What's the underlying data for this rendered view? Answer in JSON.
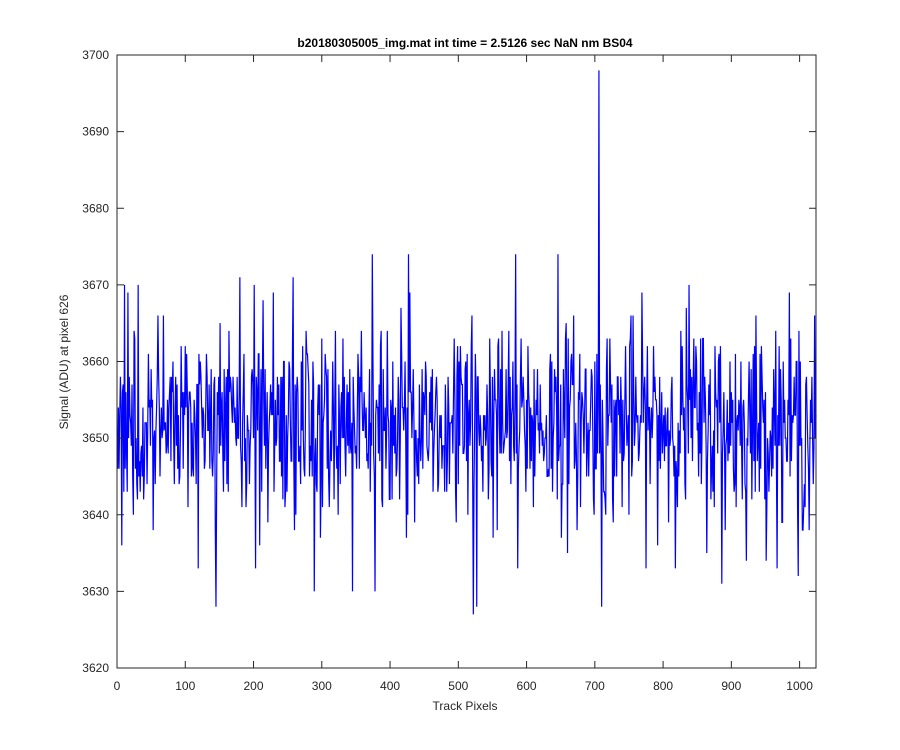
{
  "chart_data": {
    "type": "line",
    "title": "b20180305005_img.mat int time = 2.5126 sec  NaN nm BS04",
    "xlabel": "Track Pixels",
    "ylabel": "Signal (ADU) at pixel 626",
    "xlim": [
      0,
      1024
    ],
    "ylim": [
      3620,
      3700
    ],
    "xticks": [
      0,
      100,
      200,
      300,
      400,
      500,
      600,
      700,
      800,
      900,
      1000
    ],
    "yticks": [
      3620,
      3630,
      3640,
      3650,
      3660,
      3670,
      3680,
      3690,
      3700
    ],
    "grid": false,
    "legend": "none",
    "series": [
      {
        "color": "#0000ff",
        "x_start": 1,
        "x_step": 1,
        "seed": 626,
        "mean": 3652,
        "spread": 6.5,
        "point_count": 1024,
        "key_points": [
          {
            "x": 7,
            "y": 3636
          },
          {
            "x": 11,
            "y": 3670
          },
          {
            "x": 31,
            "y": 3670
          },
          {
            "x": 119,
            "y": 3633
          },
          {
            "x": 145,
            "y": 3628
          },
          {
            "x": 151,
            "y": 3665
          },
          {
            "x": 180,
            "y": 3671
          },
          {
            "x": 201,
            "y": 3670
          },
          {
            "x": 258,
            "y": 3671
          },
          {
            "x": 289,
            "y": 3630
          },
          {
            "x": 345,
            "y": 3630
          },
          {
            "x": 374,
            "y": 3674
          },
          {
            "x": 378,
            "y": 3630
          },
          {
            "x": 427,
            "y": 3674
          },
          {
            "x": 522,
            "y": 3627
          },
          {
            "x": 527,
            "y": 3628
          },
          {
            "x": 584,
            "y": 3674
          },
          {
            "x": 587,
            "y": 3633
          },
          {
            "x": 646,
            "y": 3674
          },
          {
            "x": 706,
            "y": 3698
          },
          {
            "x": 710,
            "y": 3628
          },
          {
            "x": 838,
            "y": 3670
          },
          {
            "x": 886,
            "y": 3631
          },
          {
            "x": 998,
            "y": 3632
          }
        ]
      }
    ]
  }
}
